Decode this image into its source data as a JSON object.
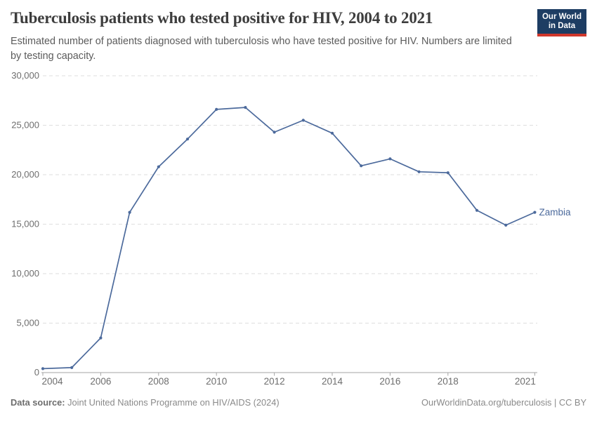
{
  "header": {
    "title": "Tuberculosis patients who tested positive for HIV, 2004 to 2021",
    "subtitle": "Estimated number of patients diagnosed with tuberculosis who have tested positive for HIV. Numbers are limited by testing capacity.",
    "logo": {
      "line1": "Our World",
      "line2": "in Data",
      "bg_color": "#1d3d63",
      "accent_color": "#d0372c"
    }
  },
  "footer": {
    "source_label": "Data source:",
    "source_value": "Joint United Nations Programme on HIV/AIDS (2024)",
    "credit": "OurWorldinData.org/tuberculosis | CC BY"
  },
  "chart_data": {
    "type": "line",
    "title": "Tuberculosis patients who tested positive for HIV, 2004 to 2021",
    "xlabel": "",
    "ylabel": "",
    "x": [
      2004,
      2005,
      2006,
      2007,
      2008,
      2009,
      2010,
      2011,
      2012,
      2013,
      2014,
      2015,
      2016,
      2017,
      2018,
      2019,
      2020,
      2021
    ],
    "series": [
      {
        "name": "Zambia",
        "color": "#4c6a9c",
        "values": [
          400,
          500,
          3500,
          16200,
          20800,
          23600,
          26600,
          26800,
          24300,
          25500,
          24200,
          20900,
          21600,
          20300,
          20200,
          16400,
          14900,
          16200
        ]
      }
    ],
    "xlim": [
      2004,
      2021
    ],
    "ylim": [
      0,
      30000
    ],
    "yticks": [
      {
        "v": 0,
        "label": "0"
      },
      {
        "v": 5000,
        "label": "5,000"
      },
      {
        "v": 10000,
        "label": "10,000"
      },
      {
        "v": 15000,
        "label": "15,000"
      },
      {
        "v": 20000,
        "label": "20,000"
      },
      {
        "v": 25000,
        "label": "25,000"
      },
      {
        "v": 30000,
        "label": "30,000"
      }
    ],
    "xticks": [
      {
        "v": 2004,
        "label": "2004"
      },
      {
        "v": 2006,
        "label": "2006"
      },
      {
        "v": 2008,
        "label": "2008"
      },
      {
        "v": 2010,
        "label": "2010"
      },
      {
        "v": 2012,
        "label": "2012"
      },
      {
        "v": 2014,
        "label": "2014"
      },
      {
        "v": 2016,
        "label": "2016"
      },
      {
        "v": 2018,
        "label": "2018"
      },
      {
        "v": 2021,
        "label": "2021"
      }
    ],
    "grid": "horizontal-dashed",
    "legend": "line-end-label",
    "colors": {
      "grid": "#dedede",
      "axis": "#a5a5a5",
      "tick_label": "#6e6e6e"
    }
  }
}
